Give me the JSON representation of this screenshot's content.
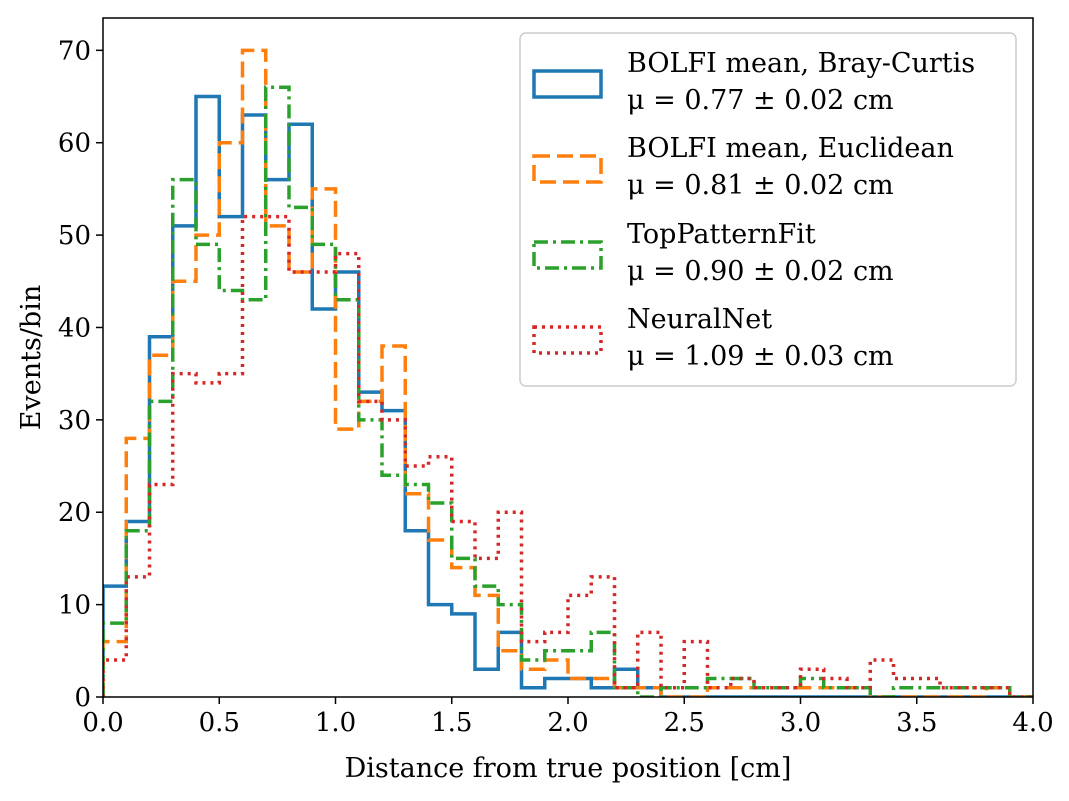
{
  "chart_data": {
    "type": "histogram",
    "xlabel": "Distance from true position [cm]",
    "ylabel": "Events/bin",
    "xlim": [
      0.0,
      4.0
    ],
    "ylim": [
      0,
      73.5
    ],
    "x_ticks": [
      "0.0",
      "0.5",
      "1.0",
      "1.5",
      "2.0",
      "2.5",
      "3.0",
      "3.5",
      "4.0"
    ],
    "y_ticks": [
      "0",
      "10",
      "20",
      "30",
      "40",
      "50",
      "60",
      "70"
    ],
    "x_tick_values": [
      0.0,
      0.5,
      1.0,
      1.5,
      2.0,
      2.5,
      3.0,
      3.5,
      4.0
    ],
    "y_tick_values": [
      0,
      10,
      20,
      30,
      40,
      50,
      60,
      70
    ],
    "bin_width": 0.1,
    "legend_position": "top-right",
    "series": [
      {
        "name": "BOLFI mean, Bray-Curtis",
        "mu_label": "μ = 0.77 ± 0.02 cm",
        "color": "#1f77b4",
        "style": "solid",
        "values": [
          12,
          19,
          39,
          51,
          65,
          52,
          63,
          56,
          62,
          42,
          46,
          33,
          31,
          18,
          10,
          9,
          3,
          7,
          1,
          2,
          2,
          1,
          3,
          1,
          0,
          0,
          0,
          0,
          0,
          0,
          0,
          0,
          0,
          0,
          0,
          0,
          0,
          0,
          0,
          0
        ]
      },
      {
        "name": "BOLFI mean, Euclidean",
        "mu_label": "μ = 0.81 ± 0.02 cm",
        "color": "#ff7f0e",
        "style": "dashed",
        "values": [
          6,
          28,
          37,
          45,
          50,
          60,
          70,
          51,
          46,
          55,
          29,
          32,
          38,
          22,
          17,
          14,
          11,
          5,
          3,
          4,
          2,
          2,
          1,
          1,
          0,
          0,
          1,
          1,
          1,
          1,
          1,
          1,
          1,
          0,
          0,
          0,
          0,
          0,
          1,
          0
        ]
      },
      {
        "name": "TopPatternFit",
        "mu_label": "μ = 0.90 ± 0.02 cm",
        "color": "#2ca02c",
        "style": "dashdot",
        "values": [
          8,
          18,
          32,
          56,
          49,
          44,
          43,
          66,
          53,
          49,
          43,
          30,
          24,
          23,
          21,
          15,
          12,
          10,
          4,
          5,
          5,
          7,
          1,
          0,
          1,
          1,
          2,
          2,
          1,
          1,
          2,
          1,
          1,
          0,
          1,
          1,
          1,
          1,
          1,
          0
        ]
      },
      {
        "name": "NeuralNet",
        "mu_label": "μ = 1.09 ± 0.03 cm",
        "color": "#d62728",
        "style": "dotted",
        "values": [
          4,
          13,
          23,
          35,
          34,
          35,
          52,
          52,
          46,
          46,
          48,
          32,
          30,
          25,
          26,
          19,
          15,
          20,
          6,
          7,
          11,
          13,
          1,
          7,
          1,
          6,
          1,
          2,
          1,
          1,
          3,
          2,
          1,
          4,
          2,
          2,
          1,
          1,
          1,
          0
        ]
      }
    ]
  }
}
